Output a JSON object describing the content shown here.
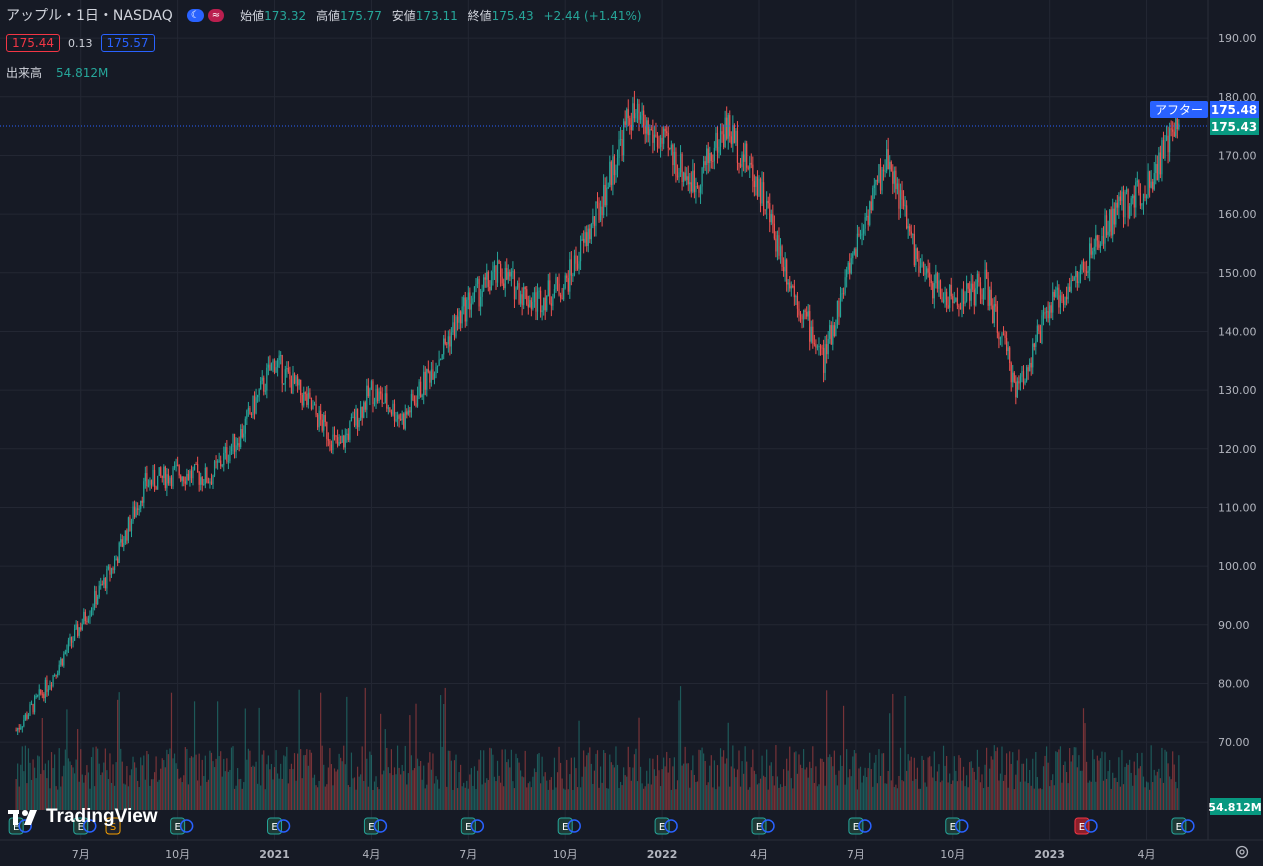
{
  "legend": {
    "symbol": "アップル・1日・NASDAQ",
    "open_label": "始値",
    "open": "173.32",
    "high_label": "高値",
    "high": "175.77",
    "low_label": "安値",
    "low": "173.11",
    "close_label": "終値",
    "close": "175.43",
    "change": "+2.44 (+1.41%)",
    "bid": "175.44",
    "spread": "0.13",
    "ask": "175.57",
    "volume_label": "出来高",
    "volume": "54.812M"
  },
  "brand": {
    "name": "TradingView"
  },
  "colors": {
    "up": "#26a69a",
    "down": "#ef5350",
    "background": "#161a25",
    "accent": "#2962ff"
  },
  "chart_data": {
    "type": "candlestick",
    "title": "アップル・1日・NASDAQ",
    "y_tick_labels": [
      "190.00",
      "180.00",
      "170.00",
      "160.00",
      "150.00",
      "140.00",
      "130.00",
      "120.00",
      "110.00",
      "100.00",
      "90.00",
      "80.00",
      "70.00"
    ],
    "x_tick_labels": [
      "7月",
      "10月",
      "2021",
      "4月",
      "7月",
      "10月",
      "2022",
      "4月",
      "7月",
      "10月",
      "2023",
      "4月"
    ],
    "ylim": [
      61.5,
      196.5
    ],
    "grid": true,
    "price_series": {
      "name": "AAPL",
      "x": [
        "2020-05",
        "2020-06",
        "2020-07",
        "2020-08",
        "2020-09",
        "2020-10",
        "2020-11",
        "2020-12",
        "2021-01",
        "2021-02",
        "2021-03",
        "2021-04",
        "2021-05",
        "2021-06",
        "2021-07",
        "2021-08",
        "2021-09",
        "2021-10",
        "2021-11",
        "2021-12",
        "2022-01",
        "2022-02",
        "2022-03",
        "2022-04",
        "2022-05",
        "2022-06",
        "2022-07",
        "2022-08",
        "2022-09",
        "2022-10",
        "2022-11",
        "2022-12",
        "2023-01",
        "2023-02",
        "2023-03",
        "2023-04",
        "2023-05"
      ],
      "close": [
        72,
        80,
        90,
        100,
        114,
        116,
        115,
        123,
        135,
        128,
        120,
        130,
        125,
        135,
        145,
        150,
        145,
        148,
        160,
        177,
        172,
        165,
        175,
        165,
        148,
        135,
        155,
        170,
        150,
        145,
        148,
        130,
        144,
        150,
        160,
        165,
        175.43
      ]
    },
    "annotations": {
      "after_hours_label": "アフター",
      "after_hours_price": "175.48",
      "last_price": "175.43",
      "last_volume": "54.812M"
    },
    "events": [
      {
        "type": "E",
        "x": "2020-05"
      },
      {
        "type": "E",
        "x": "2020-07"
      },
      {
        "type": "S",
        "x": "2020-08"
      },
      {
        "type": "E",
        "x": "2020-10"
      },
      {
        "type": "E",
        "x": "2021-01"
      },
      {
        "type": "E",
        "x": "2021-04"
      },
      {
        "type": "E",
        "x": "2021-07"
      },
      {
        "type": "E",
        "x": "2021-10"
      },
      {
        "type": "E",
        "x": "2022-01"
      },
      {
        "type": "E",
        "x": "2022-04"
      },
      {
        "type": "E",
        "x": "2022-07"
      },
      {
        "type": "E",
        "x": "2022-10"
      },
      {
        "type": "E",
        "x": "2023-02",
        "negative": true
      },
      {
        "type": "E",
        "x": "2023-05"
      }
    ]
  }
}
